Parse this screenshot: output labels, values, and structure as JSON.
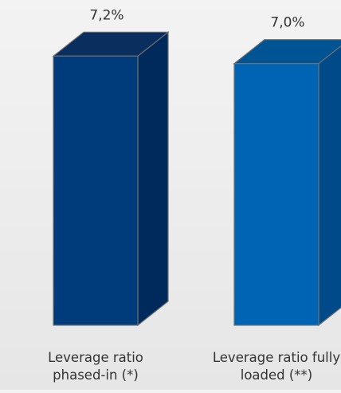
{
  "chart_data": {
    "type": "bar",
    "categories": [
      [
        "Leverage ratio",
        "phased-in (*)"
      ],
      [
        "Leverage ratio fully",
        "loaded (**)"
      ]
    ],
    "values": [
      7.2,
      7.0
    ],
    "value_labels": [
      "7,2%",
      "7,0%"
    ],
    "colors": {
      "bar1_front": "#003b7c",
      "bar1_top": "#0a2f5e",
      "bar1_side": "#002a5c",
      "bar2_front": "#0064b4",
      "bar2_top": "#005493",
      "bar2_side": "#004a8a",
      "outline": "#707070",
      "text": "#333333"
    }
  }
}
